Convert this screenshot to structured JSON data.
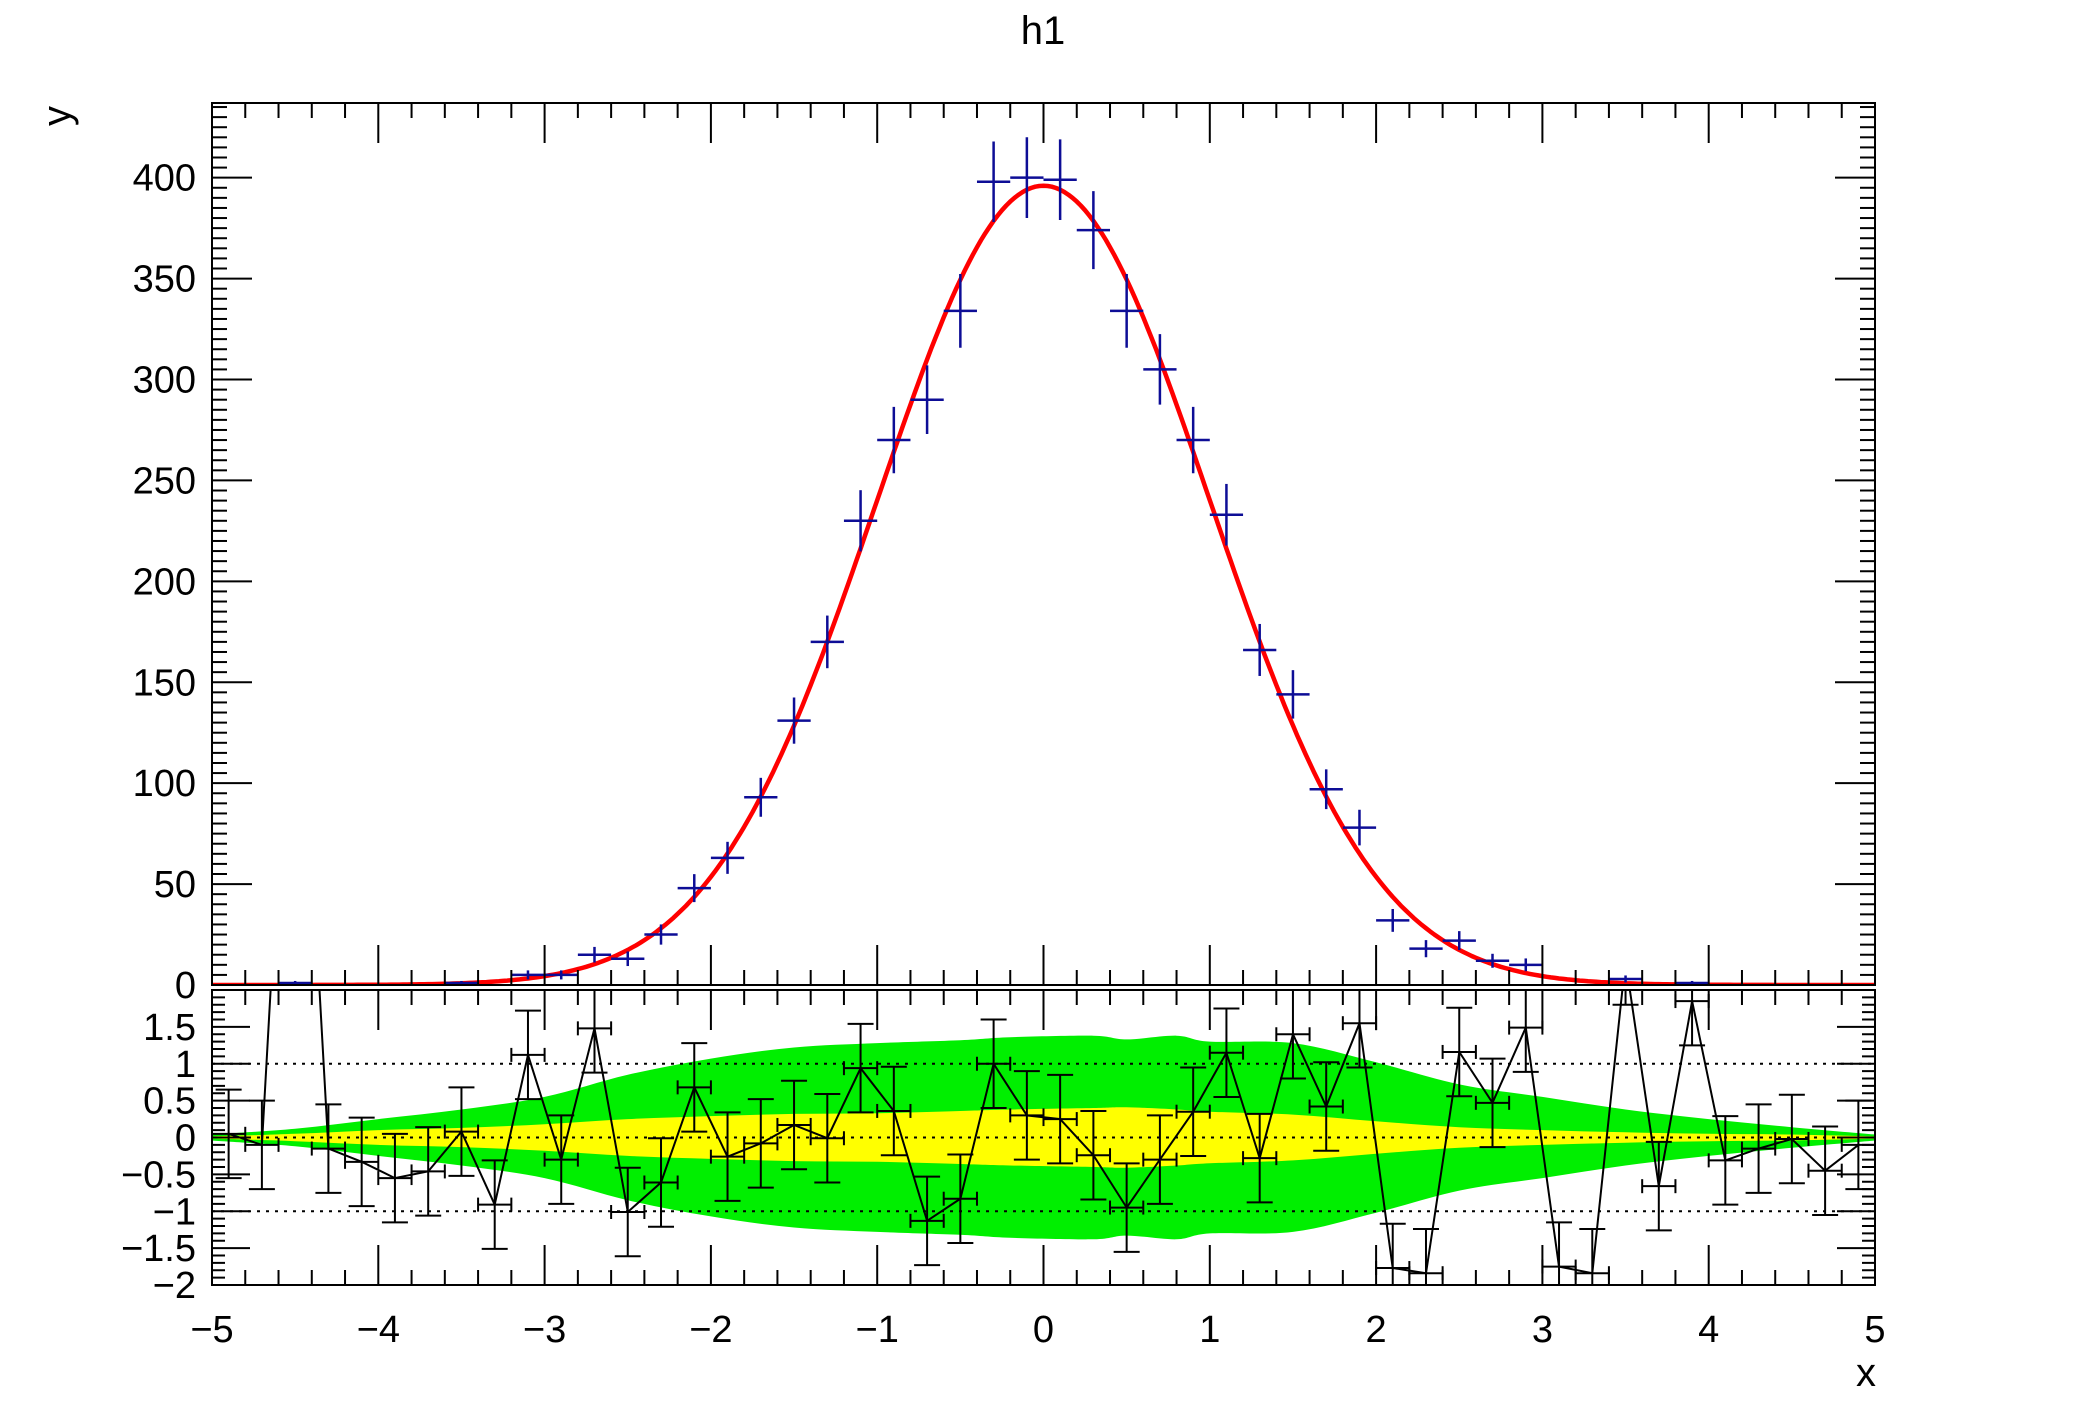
{
  "chart_data": {
    "type": "histogram",
    "title": "h1",
    "xlabel": "x",
    "ylabel": "y",
    "xlim": [
      -5,
      5
    ],
    "bin_width": 0.2,
    "bin_centers": [
      -4.9,
      -4.7,
      -4.5,
      -4.3,
      -4.1,
      -3.9,
      -3.7,
      -3.5,
      -3.3,
      -3.1,
      -2.9,
      -2.7,
      -2.5,
      -2.3,
      -2.1,
      -1.9,
      -1.7,
      -1.5,
      -1.3,
      -1.1,
      -0.9,
      -0.7,
      -0.5,
      -0.3,
      -0.1,
      0.1,
      0.3,
      0.5,
      0.7,
      0.9,
      1.1,
      1.3,
      1.5,
      1.7,
      1.9,
      2.1,
      2.3,
      2.5,
      2.7,
      2.9,
      3.1,
      3.3,
      3.5,
      3.7,
      3.9,
      4.1,
      4.3,
      4.5,
      4.7,
      4.9
    ],
    "xtick_values": [
      -5,
      -4,
      -3,
      -2,
      -1,
      0,
      1,
      2,
      3,
      4,
      5
    ],
    "xtick_labels": [
      "−5",
      "−4",
      "−3",
      "−2",
      "−1",
      "0",
      "1",
      "2",
      "3",
      "4",
      "5"
    ],
    "upper_panel": {
      "ylim": [
        0,
        437
      ],
      "ytick_values": [
        0,
        50,
        100,
        150,
        200,
        250,
        300,
        350,
        400
      ],
      "ytick_labels": [
        "0",
        "50",
        "100",
        "150",
        "200",
        "250",
        "300",
        "350",
        "400"
      ],
      "counts": [
        0,
        0,
        1,
        0,
        0,
        0,
        0,
        1,
        0,
        5,
        5,
        15,
        13,
        25,
        48,
        63,
        93,
        131,
        170,
        230,
        270,
        290,
        334,
        398,
        400,
        399,
        374,
        334,
        305,
        270,
        233,
        166,
        144,
        97,
        78,
        32,
        18,
        22,
        12,
        10,
        0,
        0,
        3,
        0,
        1,
        0,
        0,
        0,
        0,
        0
      ],
      "marker_color": "#0d0d96",
      "fit": {
        "model": "gaussian",
        "amplitude": 396,
        "mean": 0,
        "sigma": 1,
        "color": "#ff0000"
      }
    },
    "lower_panel": {
      "ylim": [
        -2,
        2
      ],
      "ytick_values": [
        1.5,
        1,
        0.5,
        0,
        -0.5,
        -1,
        -1.5,
        -2
      ],
      "ytick_labels": [
        "1.5",
        "1",
        "0.5",
        "0",
        "−0.5",
        "−1",
        "−1.5",
        "−2"
      ],
      "pulls": [
        0.05,
        -0.1,
        7.9,
        -0.15,
        -0.33,
        -0.55,
        -0.46,
        0.08,
        -0.91,
        1.12,
        -0.3,
        1.48,
        -1.01,
        -0.61,
        0.68,
        -0.26,
        -0.08,
        0.17,
        -0.01,
        0.94,
        0.36,
        -1.13,
        -0.83,
        1.0,
        0.3,
        0.25,
        -0.24,
        -0.95,
        -0.3,
        0.35,
        1.15,
        -0.28,
        1.4,
        0.42,
        1.55,
        -1.77,
        -1.84,
        1.16,
        0.47,
        1.49,
        -1.75,
        -1.84,
        2.4,
        -0.66,
        1.85,
        -0.31,
        -0.15,
        -0.02,
        -0.45,
        -0.1
      ],
      "pull_error": 0.6,
      "reference_lines": [
        1,
        0,
        -1
      ],
      "band_x": [
        -5,
        -4.5,
        -4,
        -3.5,
        -3,
        -2.5,
        -2,
        -1.5,
        -1,
        -0.5,
        -0.2,
        0.3,
        0.5,
        0.8,
        1,
        1.5,
        2,
        2.5,
        3,
        3.5,
        4,
        4.5,
        5
      ],
      "band_green_halfwidth": [
        0.04,
        0.12,
        0.25,
        0.38,
        0.55,
        0.85,
        1.07,
        1.22,
        1.28,
        1.32,
        1.36,
        1.38,
        1.33,
        1.38,
        1.3,
        1.28,
        1.02,
        0.72,
        0.55,
        0.38,
        0.25,
        0.14,
        0.04
      ],
      "band_yellow_halfwidth": [
        0.015,
        0.05,
        0.1,
        0.13,
        0.18,
        0.25,
        0.29,
        0.32,
        0.33,
        0.36,
        0.38,
        0.4,
        0.41,
        0.38,
        0.35,
        0.31,
        0.22,
        0.14,
        0.1,
        0.07,
        0.05,
        0.04,
        0.015
      ],
      "green_color": "#00ef00",
      "yellow_color": "#ffff00"
    }
  }
}
